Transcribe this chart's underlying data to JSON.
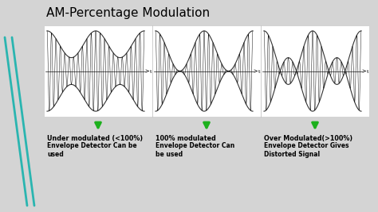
{
  "title": "AM-Percentage Modulation",
  "title_fontsize": 11,
  "background_color": "#d4d4d4",
  "panel_bg": "#f0f0f0",
  "signal_color": "#111111",
  "envelope_color": "#333333",
  "arrow_color": "#1db01d",
  "teal_color": "#2ab5b0",
  "labels": [
    "Under modulated (<100%)",
    "100% modulated",
    "Over Modulated(>100%)"
  ],
  "sublabels": [
    "Envelope Detector Can be\nused",
    "Envelope Detector Can\nbe used",
    "Envelope Detector Gives\nDistorted Signal"
  ],
  "label_fontsize": 5.8,
  "sublabel_fontsize": 5.5,
  "modulation_indices": [
    0.5,
    1.0,
    2.0
  ],
  "carrier_freq": 22,
  "message_freq": 2.0,
  "n_samples": 2000
}
